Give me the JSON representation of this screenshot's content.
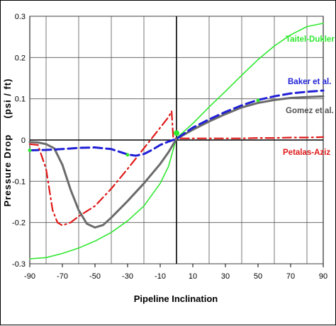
{
  "chart_data": {
    "type": "line",
    "title": "",
    "xlabel": "Pipeline Inclination",
    "ylabel_main": "Pressure Drop",
    "ylabel_unit": "(psi / ft)",
    "xlim": [
      -90,
      90
    ],
    "ylim": [
      -0.3,
      0.3
    ],
    "x_ticks": [
      -90,
      -70,
      -50,
      -30,
      -10,
      10,
      30,
      50,
      70,
      90
    ],
    "x_ticks_labels": [
      "-90",
      "-70",
      "-50",
      "-30",
      "-10",
      "10",
      "30",
      "50",
      "70",
      "90"
    ],
    "y_ticks": [
      0.3,
      0.2,
      0.1,
      0,
      -0.1,
      -0.2,
      -0.3
    ],
    "y_ticks_labels": [
      "0.3",
      "0.2",
      "0.1",
      "0",
      "-0.1",
      "-0.2",
      "-0.3"
    ],
    "grid": true,
    "series": [
      {
        "name": "Taitel-Dukler",
        "color": "#2ee82e",
        "style": "solid",
        "points": [
          [
            -90,
            -0.288
          ],
          [
            -80,
            -0.285
          ],
          [
            -70,
            -0.275
          ],
          [
            -60,
            -0.262
          ],
          [
            -50,
            -0.245
          ],
          [
            -40,
            -0.224
          ],
          [
            -30,
            -0.196
          ],
          [
            -20,
            -0.16
          ],
          [
            -10,
            -0.105
          ],
          [
            -5,
            -0.065
          ],
          [
            0,
            0.005
          ],
          [
            10,
            0.04
          ],
          [
            20,
            0.08
          ],
          [
            30,
            0.118
          ],
          [
            40,
            0.157
          ],
          [
            50,
            0.195
          ],
          [
            60,
            0.228
          ],
          [
            70,
            0.255
          ],
          [
            80,
            0.275
          ],
          [
            90,
            0.283
          ]
        ]
      },
      {
        "name": "Baker et al.",
        "color": "#1f1fd6",
        "style": "dashed",
        "points": [
          [
            -90,
            -0.025
          ],
          [
            -80,
            -0.024
          ],
          [
            -70,
            -0.022
          ],
          [
            -60,
            -0.019
          ],
          [
            -50,
            -0.018
          ],
          [
            -40,
            -0.022
          ],
          [
            -30,
            -0.035
          ],
          [
            -25,
            -0.038
          ],
          [
            -20,
            -0.034
          ],
          [
            -15,
            -0.024
          ],
          [
            -10,
            -0.012
          ],
          [
            -5,
            -0.004
          ],
          [
            0,
            0.003
          ],
          [
            10,
            0.03
          ],
          [
            20,
            0.05
          ],
          [
            30,
            0.068
          ],
          [
            40,
            0.084
          ],
          [
            50,
            0.097
          ],
          [
            60,
            0.106
          ],
          [
            70,
            0.113
          ],
          [
            80,
            0.117
          ],
          [
            90,
            0.12
          ]
        ]
      },
      {
        "name": "Gomez et al.",
        "color": "#6b6b6b",
        "style": "solid-thick",
        "points": [
          [
            -90,
            -0.005
          ],
          [
            -85,
            -0.006
          ],
          [
            -80,
            -0.01
          ],
          [
            -75,
            -0.02
          ],
          [
            -70,
            -0.06
          ],
          [
            -65,
            -0.12
          ],
          [
            -60,
            -0.17
          ],
          [
            -55,
            -0.203
          ],
          [
            -50,
            -0.212
          ],
          [
            -45,
            -0.206
          ],
          [
            -40,
            -0.188
          ],
          [
            -30,
            -0.148
          ],
          [
            -20,
            -0.105
          ],
          [
            -10,
            -0.058
          ],
          [
            -5,
            -0.03
          ],
          [
            0,
            0.003
          ],
          [
            10,
            0.025
          ],
          [
            20,
            0.045
          ],
          [
            30,
            0.063
          ],
          [
            40,
            0.079
          ],
          [
            50,
            0.09
          ],
          [
            60,
            0.097
          ],
          [
            70,
            0.102
          ],
          [
            80,
            0.104
          ],
          [
            90,
            0.106
          ]
        ]
      },
      {
        "name": "Petalas-Aziz",
        "color": "#e01818",
        "style": "dashdot",
        "points": [
          [
            -90,
            -0.01
          ],
          [
            -85,
            -0.012
          ],
          [
            -80,
            -0.07
          ],
          [
            -78,
            -0.12
          ],
          [
            -76,
            -0.17
          ],
          [
            -73,
            -0.2
          ],
          [
            -70,
            -0.207
          ],
          [
            -65,
            -0.2
          ],
          [
            -60,
            -0.185
          ],
          [
            -50,
            -0.16
          ],
          [
            -40,
            -0.118
          ],
          [
            -30,
            -0.07
          ],
          [
            -20,
            -0.02
          ],
          [
            -10,
            0.03
          ],
          [
            -5,
            0.055
          ],
          [
            -3,
            0.07
          ],
          [
            -2,
            0.005
          ],
          [
            0,
            0.004
          ],
          [
            10,
            0.004
          ],
          [
            20,
            0.004
          ],
          [
            30,
            0.004
          ],
          [
            40,
            0.004
          ],
          [
            50,
            0.005
          ],
          [
            60,
            0.005
          ],
          [
            70,
            0.006
          ],
          [
            80,
            0.006
          ],
          [
            90,
            0.007
          ]
        ]
      }
    ],
    "legend_placement": "right, labels next to curves",
    "legend_labels": [
      "Taitel-Dukler",
      "Baker et al.",
      "Gomez et al.",
      "Petalas-Aziz"
    ]
  }
}
